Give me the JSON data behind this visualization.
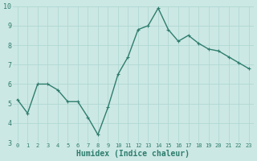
{
  "x": [
    0,
    1,
    2,
    3,
    4,
    5,
    6,
    7,
    8,
    9,
    10,
    11,
    12,
    13,
    14,
    15,
    16,
    17,
    18,
    19,
    20,
    21,
    22,
    23
  ],
  "y": [
    5.2,
    4.5,
    6.0,
    6.0,
    5.7,
    5.1,
    5.1,
    4.3,
    3.4,
    4.8,
    6.5,
    7.4,
    8.8,
    9.0,
    9.9,
    8.8,
    8.2,
    8.5,
    8.1,
    7.8,
    7.7,
    7.4,
    7.1,
    6.8
  ],
  "xlabel": "Humidex (Indice chaleur)",
  "ylim": [
    3,
    10
  ],
  "xlim": [
    -0.5,
    23.5
  ],
  "yticks": [
    3,
    4,
    5,
    6,
    7,
    8,
    9,
    10
  ],
  "xticks": [
    0,
    1,
    2,
    3,
    4,
    5,
    6,
    7,
    8,
    9,
    10,
    11,
    12,
    13,
    14,
    15,
    16,
    17,
    18,
    19,
    20,
    21,
    22,
    23
  ],
  "line_color": "#2e7d6e",
  "marker_color": "#2e7d6e",
  "bg_color": "#cce8e4",
  "grid_color": "#b0d8d4",
  "xlabel_color": "#2e7d6e",
  "tick_color": "#2e7d6e",
  "tick_fontsize_x": 5.0,
  "tick_fontsize_y": 6.0,
  "xlabel_fontsize": 7.0,
  "linewidth": 1.0,
  "markersize": 2.2
}
